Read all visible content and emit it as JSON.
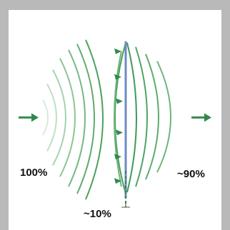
{
  "labels": {
    "incident": "100%",
    "transmitted": "~90%",
    "reflected": "~10%"
  },
  "colors": {
    "wave": "#3f9a57",
    "wave_light": "#9fcfa6",
    "arrow": "#2f8a4a",
    "boundary": "#6f88c6",
    "frame": "#b9b9b9"
  },
  "icons": {
    "incident_arrow": "arrow-right-icon",
    "transmitted_arrow": "arrow-right-icon",
    "reflected_arrows": "arrow-left-icon"
  }
}
